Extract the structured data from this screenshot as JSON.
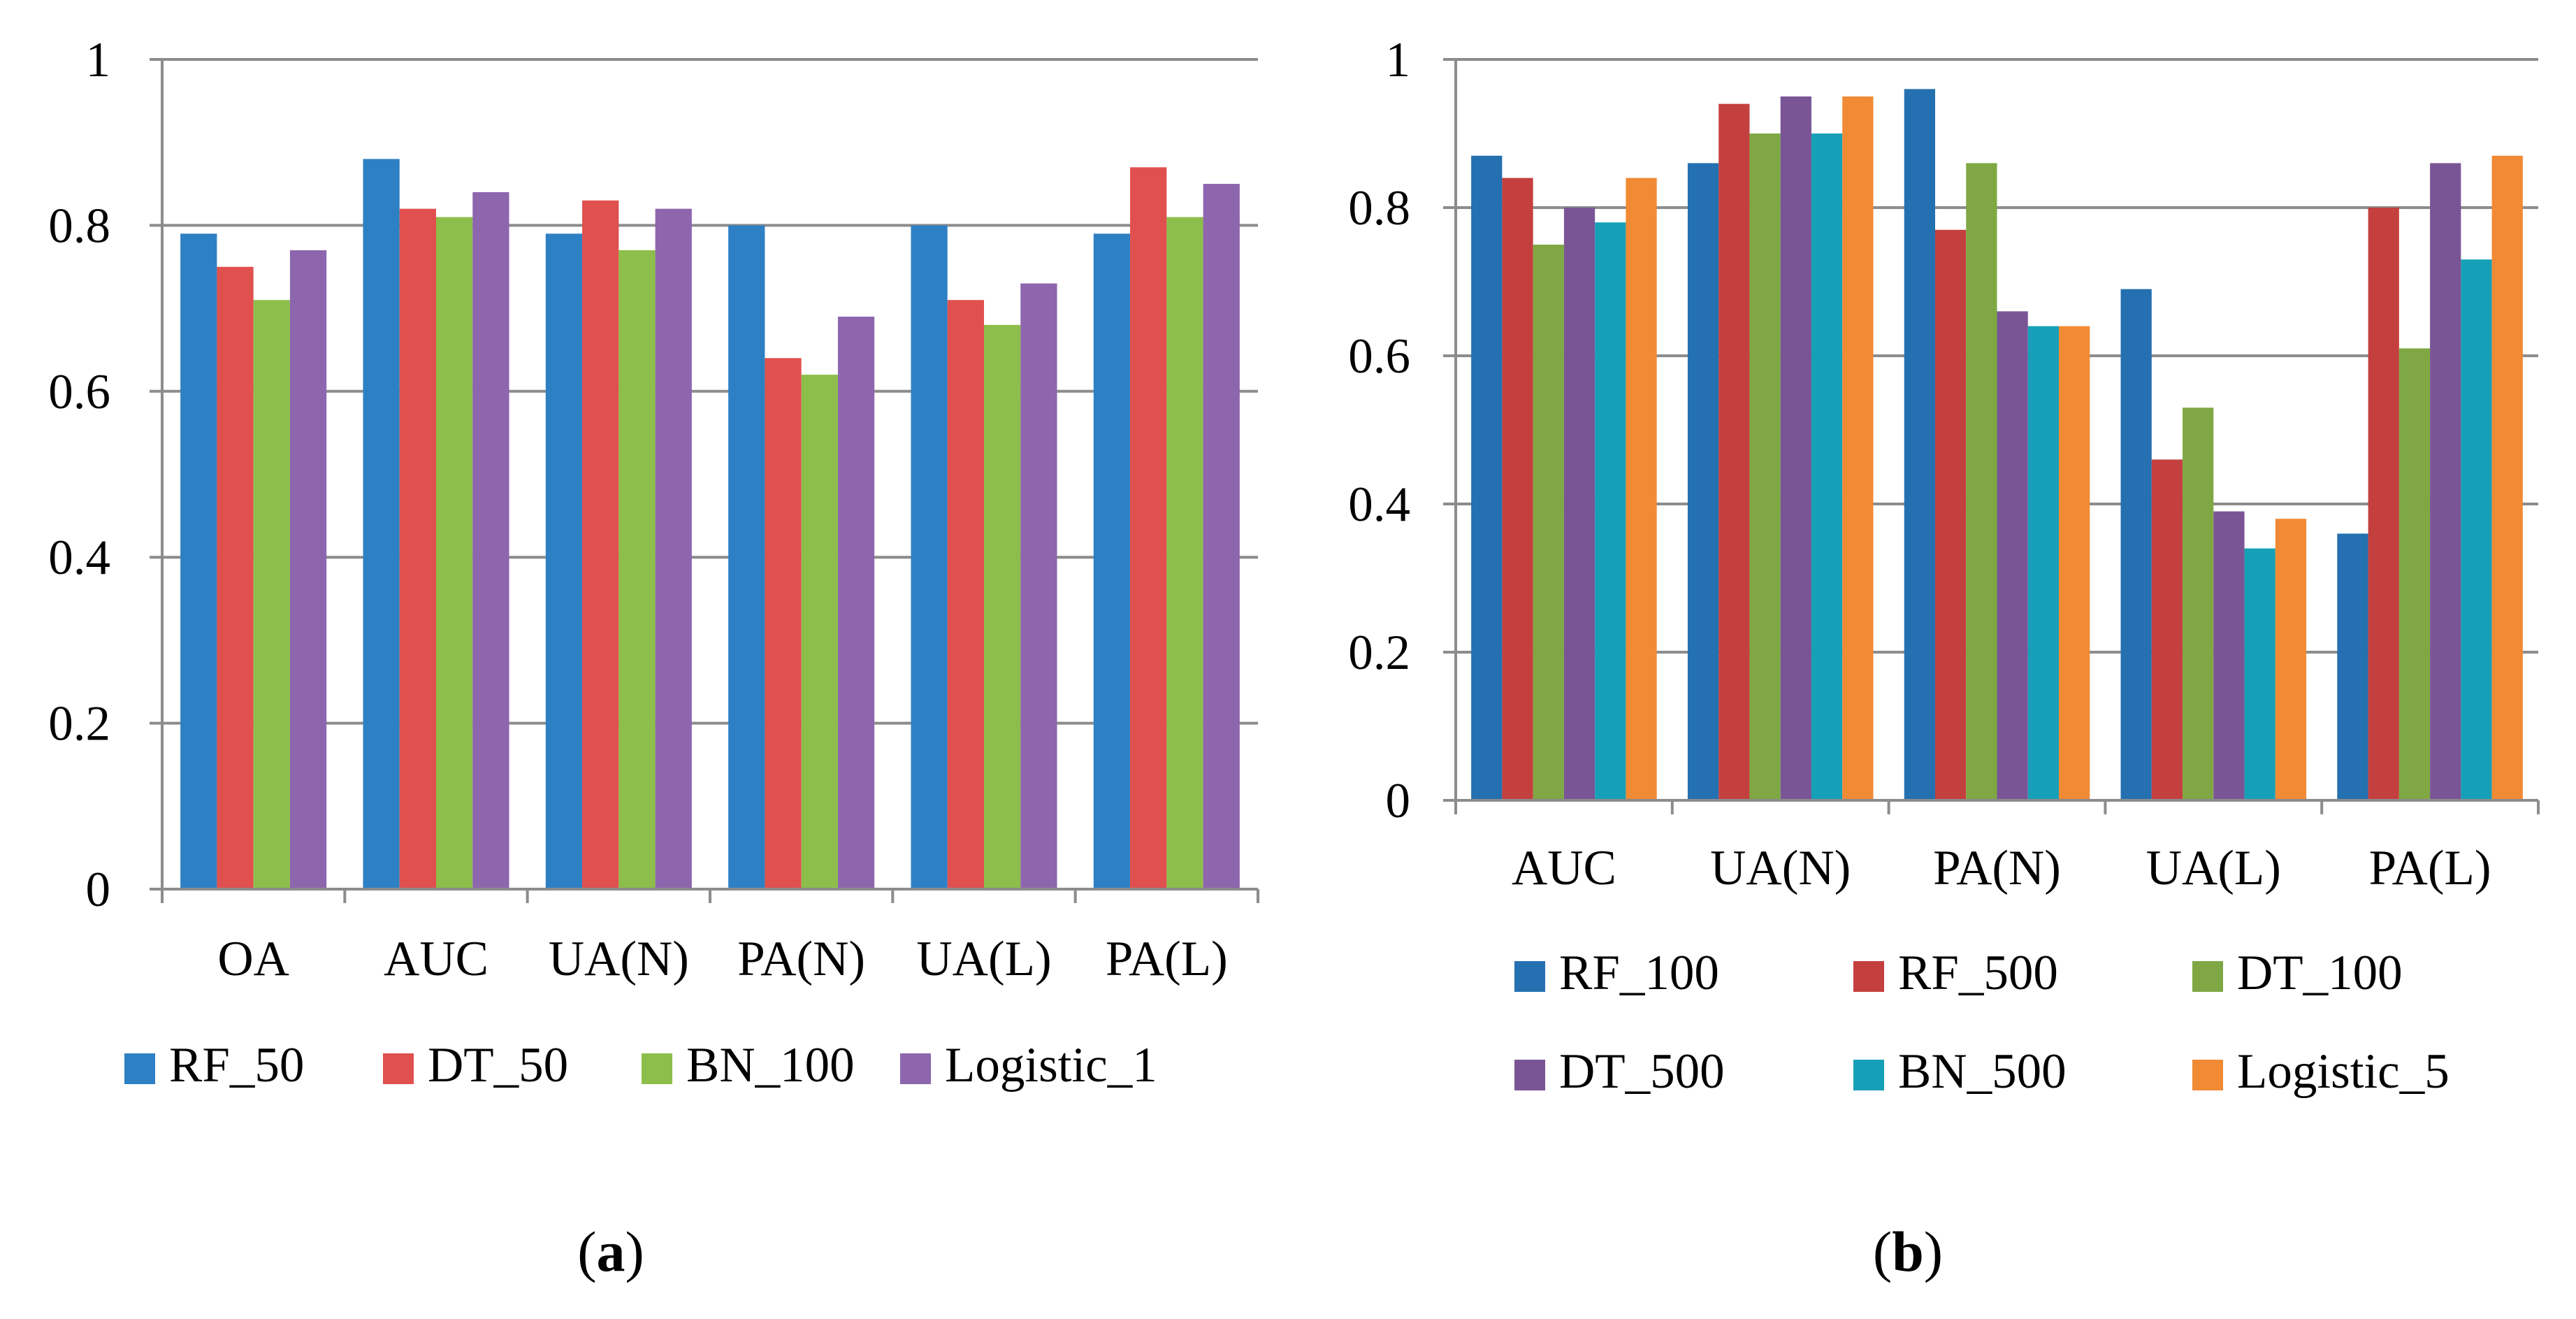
{
  "chart_data": [
    {
      "type": "bar",
      "panel_label": "(a)",
      "panel_letter": "a",
      "categories": [
        "OA",
        "AUC",
        "UA(N)",
        "PA(N)",
        "UA(L)",
        "PA(L)"
      ],
      "yticks": [
        "0",
        "0.2",
        "0.4",
        "0.6",
        "0.8",
        "1"
      ],
      "ylim": [
        0,
        1
      ],
      "grid": true,
      "legend_position": "bottom",
      "series": [
        {
          "name": "RF_50",
          "color": "#2E80C4",
          "values": [
            0.79,
            0.88,
            0.79,
            0.8,
            0.8,
            0.79
          ]
        },
        {
          "name": "DT_50",
          "color": "#E0504E",
          "values": [
            0.75,
            0.82,
            0.83,
            0.64,
            0.71,
            0.87
          ]
        },
        {
          "name": "BN_100",
          "color": "#8DBE4B",
          "values": [
            0.71,
            0.81,
            0.77,
            0.62,
            0.68,
            0.81
          ]
        },
        {
          "name": "Logistic_1",
          "color": "#8D66AE",
          "values": [
            0.77,
            0.84,
            0.82,
            0.69,
            0.73,
            0.85
          ]
        }
      ]
    },
    {
      "type": "bar",
      "panel_label": "(b)",
      "panel_letter": "b",
      "categories": [
        "AUC",
        "UA(N)",
        "PA(N)",
        "UA(L)",
        "PA(L)"
      ],
      "yticks": [
        "0",
        "0.2",
        "0.4",
        "0.6",
        "0.8",
        "1"
      ],
      "ylim": [
        0,
        1
      ],
      "grid": true,
      "legend_position": "bottom",
      "series": [
        {
          "name": "RF_100",
          "color": "#2470B0",
          "values": [
            0.87,
            0.86,
            0.96,
            0.69,
            0.36
          ]
        },
        {
          "name": "RF_500",
          "color": "#C4403F",
          "values": [
            0.84,
            0.94,
            0.77,
            0.46,
            0.8
          ]
        },
        {
          "name": "DT_100",
          "color": "#7FA844",
          "values": [
            0.75,
            0.9,
            0.86,
            0.53,
            0.61
          ]
        },
        {
          "name": "DT_500",
          "color": "#7A5595",
          "values": [
            0.8,
            0.95,
            0.66,
            0.39,
            0.86
          ]
        },
        {
          "name": "BN_500",
          "color": "#16A0B7",
          "values": [
            0.78,
            0.9,
            0.64,
            0.34,
            0.73
          ]
        },
        {
          "name": "Logistic_5",
          "color": "#F18A35",
          "values": [
            0.84,
            0.95,
            0.64,
            0.38,
            0.87
          ]
        }
      ]
    }
  ]
}
